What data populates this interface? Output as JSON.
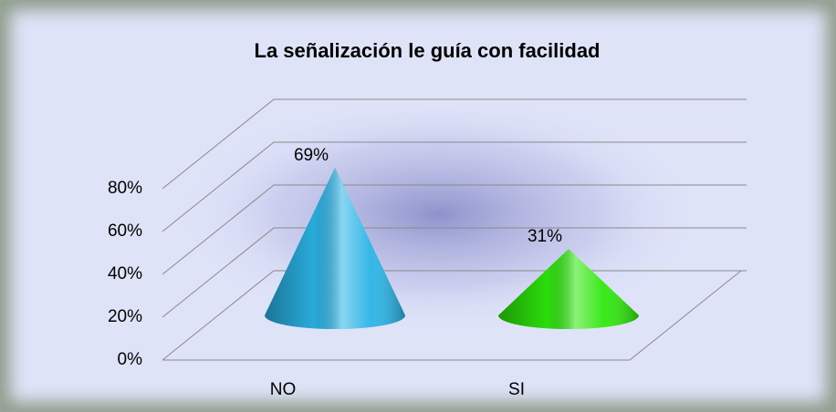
{
  "chart_data": {
    "type": "cone",
    "title": "La señalización le guía con facilidad",
    "categories": [
      "NO",
      "SI"
    ],
    "values": [
      69,
      31
    ],
    "value_labels": [
      "69%",
      "31%"
    ],
    "colors": [
      "#2ab4e6",
      "#2ee80c"
    ],
    "ylim": [
      0,
      80
    ],
    "yticks": [
      {
        "value": 0,
        "label": "0%"
      },
      {
        "value": 20,
        "label": "20%"
      },
      {
        "value": 40,
        "label": "40%"
      },
      {
        "value": 60,
        "label": "60%"
      },
      {
        "value": 80,
        "label": "80%"
      }
    ],
    "grid": true
  }
}
